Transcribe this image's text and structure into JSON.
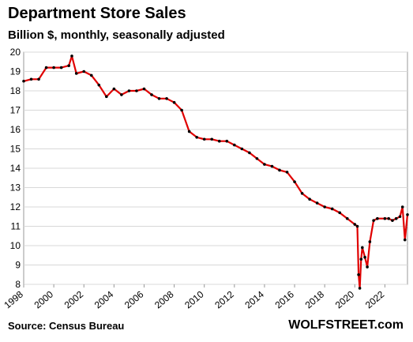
{
  "chart_data": {
    "type": "line",
    "title": "Department Store Sales",
    "subtitle": "Billion $, monthly, seasonally adjusted",
    "xlabel": "",
    "ylabel": "",
    "xlim": [
      1998.0,
      2023.5
    ],
    "ylim": [
      8,
      20
    ],
    "x_ticks": [
      "1998",
      "2000",
      "2002",
      "2004",
      "2006",
      "2008",
      "2010",
      "2012",
      "2014",
      "2016",
      "2018",
      "2020",
      "2022"
    ],
    "y_ticks": [
      "8",
      "9",
      "10",
      "11",
      "12",
      "13",
      "14",
      "15",
      "16",
      "17",
      "18",
      "19",
      "20"
    ],
    "grid": "horizontal",
    "line_color": "#e00000",
    "marker_color": "#000000",
    "series": [
      {
        "x": [
          1998.0,
          1998.5,
          1999.0,
          1999.5,
          2000.0,
          2000.5,
          2001.0,
          2001.2,
          2001.5,
          2002.0,
          2002.5,
          2003.0,
          2003.5,
          2004.0,
          2004.5,
          2005.0,
          2005.5,
          2006.0,
          2006.5,
          2007.0,
          2007.5,
          2008.0,
          2008.5,
          2009.0,
          2009.5,
          2010.0,
          2010.5,
          2011.0,
          2011.5,
          2012.0,
          2012.5,
          2013.0,
          2013.5,
          2014.0,
          2014.5,
          2015.0,
          2015.5,
          2016.0,
          2016.5,
          2017.0,
          2017.5,
          2018.0,
          2018.5,
          2019.0,
          2019.5,
          2020.0,
          2020.17,
          2020.25,
          2020.33,
          2020.42,
          2020.5,
          2020.67,
          2020.83,
          2021.0,
          2021.25,
          2021.5,
          2022.0,
          2022.25,
          2022.5,
          2022.75,
          2023.0,
          2023.17,
          2023.33,
          2023.5
        ],
        "values": [
          18.5,
          18.6,
          18.6,
          19.2,
          19.2,
          19.2,
          19.3,
          19.8,
          18.9,
          19.0,
          18.8,
          18.3,
          17.7,
          18.1,
          17.8,
          18.0,
          18.0,
          18.1,
          17.8,
          17.6,
          17.6,
          17.4,
          17.0,
          15.9,
          15.6,
          15.5,
          15.5,
          15.4,
          15.4,
          15.2,
          15.0,
          14.8,
          14.5,
          14.2,
          14.1,
          13.9,
          13.8,
          13.3,
          12.7,
          12.4,
          12.2,
          12.0,
          11.9,
          11.7,
          11.4,
          11.1,
          11.0,
          8.5,
          7.8,
          9.3,
          9.9,
          9.4,
          8.9,
          10.2,
          11.3,
          11.4,
          11.4,
          11.4,
          11.3,
          11.4,
          11.5,
          12.0,
          10.3,
          11.6
        ]
      }
    ]
  },
  "footer": {
    "source": "Source: Census Bureau",
    "brand": "WOLFSTREET.com"
  }
}
